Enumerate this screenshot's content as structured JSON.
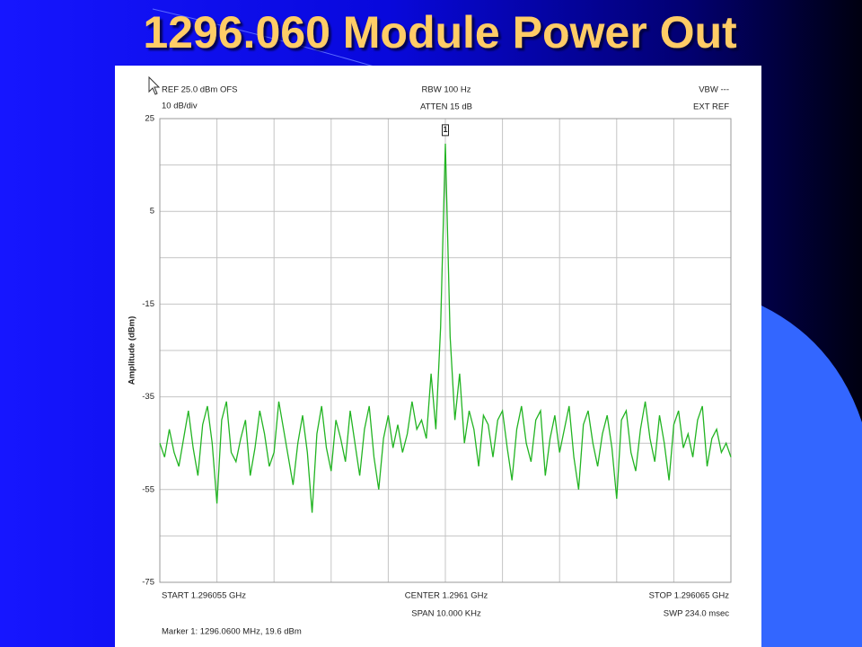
{
  "chart_data": {
    "type": "line",
    "title": "1296.060 Module Power Out",
    "y_label": "Amplitude (dBm)",
    "annotations": {
      "ref": "REF 25.0 dBm OFS",
      "scale": "10 dB/div",
      "rbw": "RBW 100 Hz",
      "atten": "ATTEN 15 dB",
      "vbw": "VBW ---",
      "ext_ref": "EXT REF",
      "start": "START 1.296055 GHz",
      "center": "CENTER 1.2961 GHz",
      "stop": "STOP 1.296065 GHz",
      "span": "SPAN 10.000 KHz",
      "sweep": "SWP 234.0 msec",
      "marker": "Marker 1: 1296.0600 MHz, 19.6 dBm"
    },
    "marker_label": "1",
    "ylim": [
      -75,
      25
    ],
    "yticks": [
      25,
      5,
      -15,
      -35,
      -55,
      -75
    ],
    "y_minor_grid": [
      15,
      -5,
      -25,
      -45,
      -65
    ],
    "grid": true,
    "color": "#22b422",
    "values": [
      -45,
      -48,
      -42,
      -47,
      -50,
      -44,
      -38,
      -46,
      -52,
      -41,
      -37,
      -45,
      -58,
      -40,
      -36,
      -47,
      -49,
      -44,
      -40,
      -52,
      -46,
      -38,
      -43,
      -50,
      -47,
      -36,
      -42,
      -48,
      -54,
      -45,
      -39,
      -47,
      -60,
      -43,
      -37,
      -46,
      -51,
      -40,
      -44,
      -49,
      -38,
      -45,
      -52,
      -42,
      -37,
      -48,
      -55,
      -44,
      -39,
      -46,
      -41,
      -47,
      -43,
      -36,
      -42,
      -40,
      -44,
      -30,
      -42,
      -20,
      19.6,
      -22,
      -40,
      -30,
      -45,
      -38,
      -42,
      -50,
      -39,
      -41,
      -48,
      -40,
      -38,
      -46,
      -53,
      -42,
      -37,
      -45,
      -49,
      -40,
      -38,
      -52,
      -44,
      -39,
      -47,
      -42,
      -37,
      -48,
      -55,
      -41,
      -38,
      -45,
      -50,
      -43,
      -39,
      -46,
      -57,
      -40,
      -38,
      -47,
      -51,
      -42,
      -36,
      -44,
      -49,
      -39,
      -45,
      -53,
      -41,
      -38,
      -46,
      -43,
      -48,
      -40,
      -37,
      -50,
      -44,
      -42,
      -47,
      -45,
      -48
    ]
  }
}
